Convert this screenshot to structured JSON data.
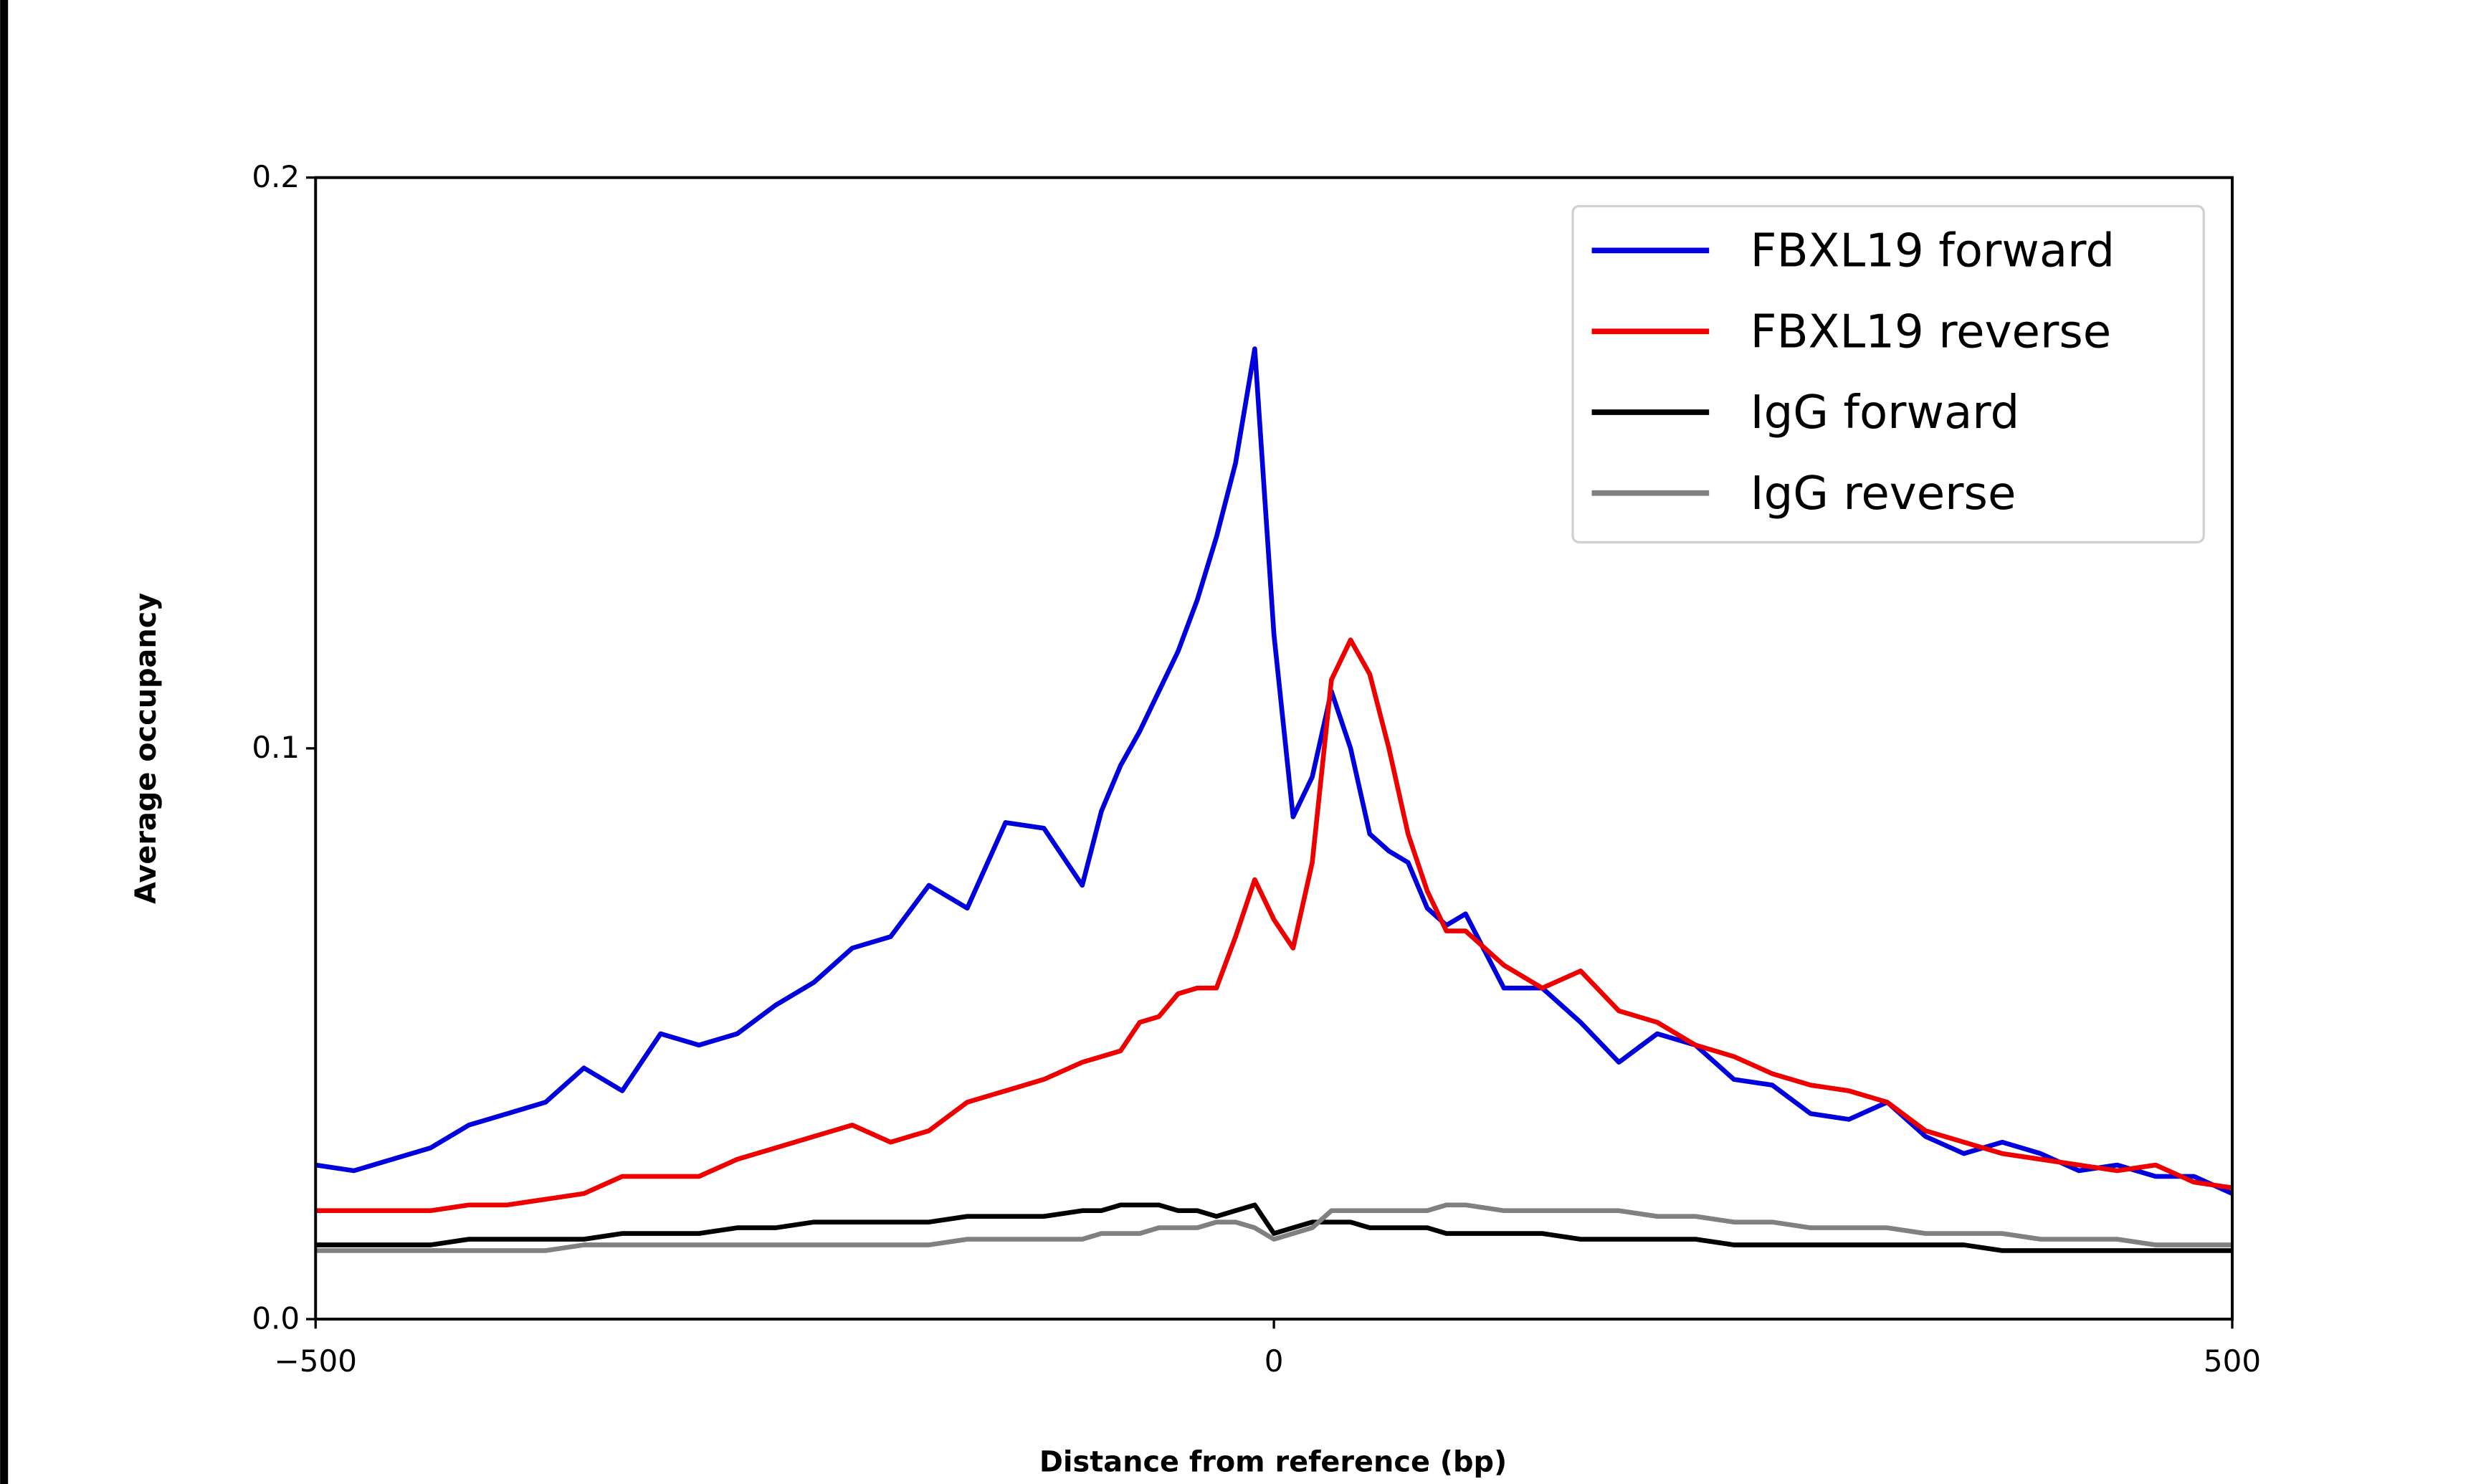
{
  "chart_data": {
    "type": "line",
    "xlabel": "Distance from reference (bp)",
    "ylabel": "Average occupancy",
    "x": [
      -500,
      -480,
      -460,
      -440,
      -420,
      -400,
      -380,
      -360,
      -340,
      -320,
      -300,
      -280,
      -260,
      -240,
      -220,
      -200,
      -180,
      -160,
      -140,
      -120,
      -100,
      -90,
      -80,
      -70,
      -60,
      -50,
      -40,
      -30,
      -20,
      -10,
      0,
      10,
      20,
      30,
      40,
      50,
      60,
      70,
      80,
      90,
      100,
      120,
      140,
      160,
      180,
      200,
      220,
      240,
      260,
      280,
      300,
      320,
      340,
      360,
      380,
      400,
      420,
      440,
      460,
      480,
      500
    ],
    "series": [
      {
        "name": "FBXL19 forward",
        "color": "#0000dd",
        "values": [
          0.027,
          0.026,
          0.028,
          0.03,
          0.034,
          0.036,
          0.038,
          0.044,
          0.04,
          0.05,
          0.048,
          0.05,
          0.055,
          0.059,
          0.065,
          0.067,
          0.076,
          0.072,
          0.087,
          0.086,
          0.076,
          0.089,
          0.097,
          0.103,
          0.11,
          0.117,
          0.126,
          0.137,
          0.15,
          0.17,
          0.12,
          0.088,
          0.095,
          0.11,
          0.1,
          0.085,
          0.082,
          0.08,
          0.072,
          0.069,
          0.071,
          0.058,
          0.058,
          0.052,
          0.045,
          0.05,
          0.048,
          0.042,
          0.041,
          0.036,
          0.035,
          0.038,
          0.032,
          0.029,
          0.031,
          0.029,
          0.026,
          0.027,
          0.025,
          0.025,
          0.022
        ]
      },
      {
        "name": "FBXL19 reverse",
        "color": "#ee0000",
        "values": [
          0.019,
          0.019,
          0.019,
          0.019,
          0.02,
          0.02,
          0.021,
          0.022,
          0.025,
          0.025,
          0.025,
          0.028,
          0.03,
          0.032,
          0.034,
          0.031,
          0.033,
          0.038,
          0.04,
          0.042,
          0.045,
          0.046,
          0.047,
          0.052,
          0.053,
          0.057,
          0.058,
          0.058,
          0.067,
          0.077,
          0.07,
          0.065,
          0.08,
          0.112,
          0.119,
          0.113,
          0.1,
          0.085,
          0.075,
          0.068,
          0.068,
          0.062,
          0.058,
          0.061,
          0.054,
          0.052,
          0.048,
          0.046,
          0.043,
          0.041,
          0.04,
          0.038,
          0.033,
          0.031,
          0.029,
          0.028,
          0.027,
          0.026,
          0.027,
          0.024,
          0.023
        ]
      },
      {
        "name": "IgG forward",
        "color": "#000000",
        "values": [
          0.013,
          0.013,
          0.013,
          0.013,
          0.014,
          0.014,
          0.014,
          0.014,
          0.015,
          0.015,
          0.015,
          0.016,
          0.016,
          0.017,
          0.017,
          0.017,
          0.017,
          0.018,
          0.018,
          0.018,
          0.019,
          0.019,
          0.02,
          0.02,
          0.02,
          0.019,
          0.019,
          0.018,
          0.019,
          0.02,
          0.015,
          0.016,
          0.017,
          0.017,
          0.017,
          0.016,
          0.016,
          0.016,
          0.016,
          0.015,
          0.015,
          0.015,
          0.015,
          0.014,
          0.014,
          0.014,
          0.014,
          0.013,
          0.013,
          0.013,
          0.013,
          0.013,
          0.013,
          0.013,
          0.012,
          0.012,
          0.012,
          0.012,
          0.012,
          0.012,
          0.012
        ]
      },
      {
        "name": "IgG reverse",
        "color": "#808080",
        "values": [
          0.012,
          0.012,
          0.012,
          0.012,
          0.012,
          0.012,
          0.012,
          0.013,
          0.013,
          0.013,
          0.013,
          0.013,
          0.013,
          0.013,
          0.013,
          0.013,
          0.013,
          0.014,
          0.014,
          0.014,
          0.014,
          0.015,
          0.015,
          0.015,
          0.016,
          0.016,
          0.016,
          0.017,
          0.017,
          0.016,
          0.014,
          0.015,
          0.016,
          0.019,
          0.019,
          0.019,
          0.019,
          0.019,
          0.019,
          0.02,
          0.02,
          0.019,
          0.019,
          0.019,
          0.019,
          0.018,
          0.018,
          0.017,
          0.017,
          0.016,
          0.016,
          0.016,
          0.015,
          0.015,
          0.015,
          0.014,
          0.014,
          0.014,
          0.013,
          0.013,
          0.013
        ]
      }
    ],
    "xlim": [
      -500,
      500
    ],
    "ylim": [
      0,
      0.2
    ],
    "xticks": [
      {
        "value": -500,
        "label": "−500"
      },
      0,
      500
    ],
    "yticks": [
      {
        "value": 0,
        "label": "0.0"
      },
      0.1,
      0.2
    ],
    "legend": "upper right",
    "grid": false
  }
}
